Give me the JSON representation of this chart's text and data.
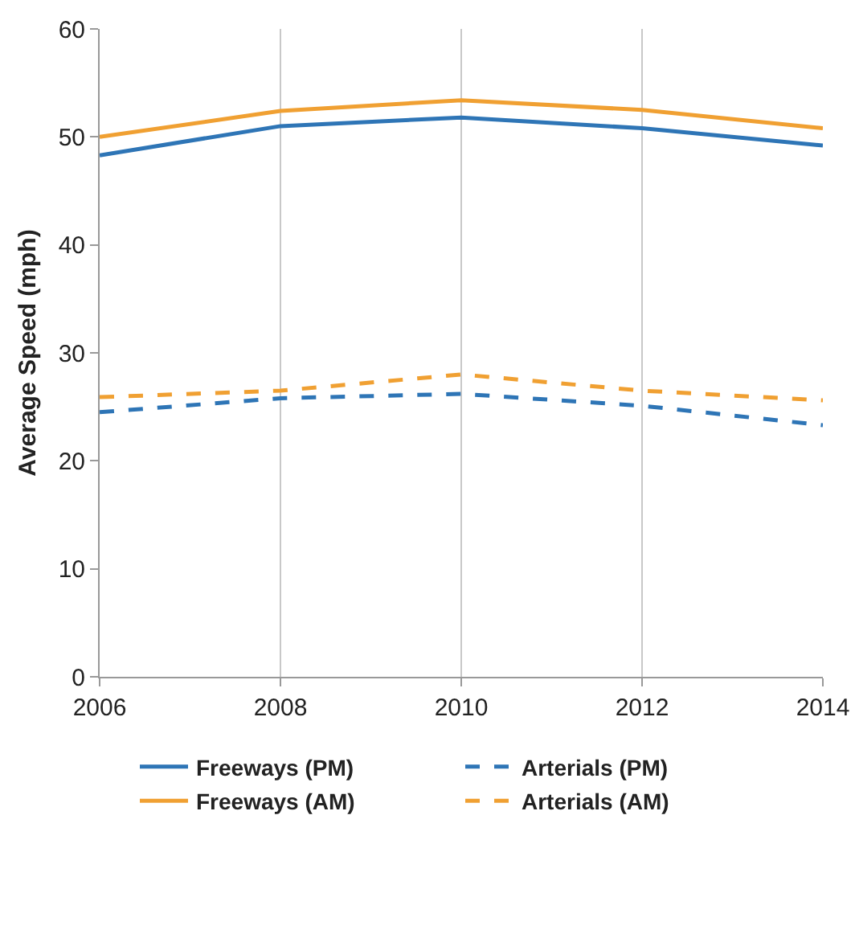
{
  "chart_data": {
    "type": "line",
    "ylabel": "Average Speed (mph)",
    "x": [
      2006,
      2008,
      2010,
      2012,
      2014
    ],
    "xlim": [
      2006,
      2014
    ],
    "xticks": [
      2006,
      2008,
      2010,
      2012,
      2014
    ],
    "ylim": [
      0,
      60
    ],
    "yticks": [
      0,
      10,
      20,
      30,
      40,
      50,
      60
    ],
    "grid": "x",
    "legend": "bottom",
    "series": [
      {
        "name": "Freeways (PM)",
        "color": "#2e75b6",
        "line_style": "solid",
        "values": [
          48.3,
          51.0,
          51.8,
          50.8,
          49.2
        ]
      },
      {
        "name": "Arterials (PM)",
        "color": "#2e75b6",
        "line_style": "dashed",
        "values": [
          24.5,
          25.8,
          26.2,
          25.1,
          23.3
        ]
      },
      {
        "name": "Freeways (AM)",
        "color": "#f0a032",
        "line_style": "solid",
        "values": [
          50.0,
          52.4,
          53.4,
          52.5,
          50.8
        ]
      },
      {
        "name": "Arterials (AM)",
        "color": "#f0a032",
        "line_style": "dashed",
        "values": [
          25.9,
          26.5,
          28.0,
          26.5,
          25.6
        ]
      }
    ]
  }
}
